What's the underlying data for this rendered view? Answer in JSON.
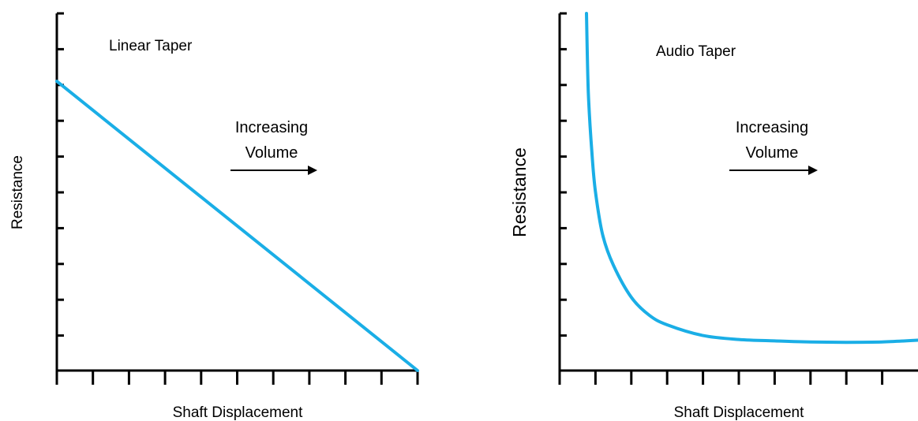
{
  "chart_data": [
    {
      "type": "line",
      "annotation": "Linear Taper",
      "arrow_text": [
        "Increasing",
        "Volume"
      ],
      "xlabel": "Shaft Displacement",
      "ylabel": "Resistance",
      "xlim": [
        0,
        10
      ],
      "ylim": [
        0,
        10
      ],
      "grid": false,
      "series": [
        {
          "x": [
            0,
            10
          ],
          "y": [
            8.1,
            0
          ],
          "color": "#1AAEE6"
        }
      ]
    },
    {
      "type": "line",
      "annotation": "Audio Taper",
      "arrow_text": [
        "Increasing",
        "Volume"
      ],
      "xlabel": "Shaft Displacement",
      "ylabel": "Resistance",
      "xlim": [
        0,
        10
      ],
      "ylim": [
        0,
        10
      ],
      "grid": false,
      "series": [
        {
          "x": [
            0.75,
            0.8,
            0.9,
            1.0,
            1.2,
            1.5,
            2.0,
            2.5,
            3.0,
            4.0,
            5.0,
            6.0,
            7.0,
            8.0,
            9.0,
            10.0
          ],
          "y": [
            10.0,
            7.8,
            6.1,
            5.0,
            3.8,
            2.95,
            2.05,
            1.55,
            1.28,
            0.98,
            0.87,
            0.83,
            0.8,
            0.79,
            0.8,
            0.85
          ],
          "color": "#1AAEE6"
        }
      ]
    }
  ]
}
